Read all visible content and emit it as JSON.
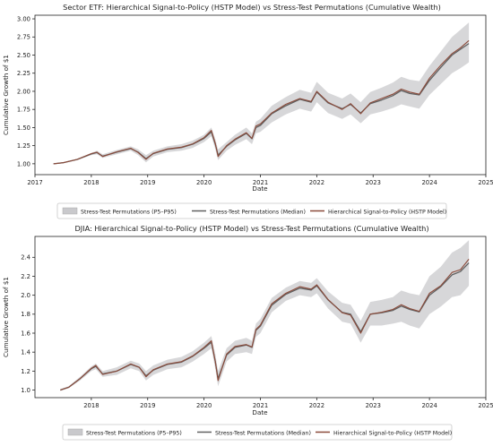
{
  "colors": {
    "band": "#c9c9cc",
    "median": "#606060",
    "hstp": "#8b4a3a",
    "axis": "#222222",
    "legend_border": "#c8c8c8"
  },
  "chart_data": [
    {
      "type": "line",
      "title": "Sector ETF: Hierarchical Signal-to-Policy (HSTP Model) vs Stress-Test Permutations (Cumulative Wealth)",
      "xlabel": "Date",
      "ylabel": "Cumulative Growth of $1",
      "x_unit": "year",
      "xlim": [
        2017.0,
        2025.0
      ],
      "ylim": [
        0.85,
        3.05
      ],
      "xticks": [
        "2017",
        "2018",
        "2019",
        "2020",
        "2021",
        "2022",
        "2023",
        "2024",
        "2025"
      ],
      "yticks": [
        "1.00",
        "1.25",
        "1.50",
        "1.75",
        "2.00",
        "2.25",
        "2.50",
        "2.75",
        "3.00"
      ],
      "legend": "bottom-center",
      "x": [
        2017.33,
        2017.5,
        2017.75,
        2018.0,
        2018.1,
        2018.2,
        2018.45,
        2018.7,
        2018.83,
        2018.97,
        2019.1,
        2019.35,
        2019.6,
        2019.8,
        2020.0,
        2020.13,
        2020.2,
        2020.25,
        2020.4,
        2020.55,
        2020.75,
        2020.85,
        2020.92,
        2021.0,
        2021.2,
        2021.45,
        2021.7,
        2021.9,
        2022.0,
        2022.2,
        2022.45,
        2022.6,
        2022.78,
        2022.95,
        2023.15,
        2023.35,
        2023.5,
        2023.65,
        2023.82,
        2024.0,
        2024.2,
        2024.4,
        2024.55,
        2024.7
      ],
      "series": [
        {
          "name": "Stress-Test Permutations (P5–P95)",
          "kind": "band",
          "lower": [
            1.0,
            1.01,
            1.05,
            1.12,
            1.13,
            1.08,
            1.13,
            1.18,
            1.12,
            1.02,
            1.1,
            1.16,
            1.18,
            1.22,
            1.3,
            1.38,
            1.2,
            1.05,
            1.18,
            1.26,
            1.34,
            1.27,
            1.42,
            1.44,
            1.57,
            1.68,
            1.76,
            1.72,
            1.85,
            1.7,
            1.62,
            1.68,
            1.56,
            1.68,
            1.72,
            1.77,
            1.82,
            1.79,
            1.76,
            1.95,
            2.1,
            2.25,
            2.32,
            2.4
          ],
          "upper": [
            1.0,
            1.02,
            1.07,
            1.15,
            1.18,
            1.13,
            1.19,
            1.24,
            1.2,
            1.12,
            1.18,
            1.24,
            1.27,
            1.32,
            1.4,
            1.5,
            1.34,
            1.2,
            1.3,
            1.4,
            1.5,
            1.42,
            1.58,
            1.62,
            1.8,
            1.92,
            2.02,
            1.98,
            2.13,
            1.98,
            1.9,
            1.97,
            1.85,
            1.99,
            2.05,
            2.12,
            2.2,
            2.16,
            2.14,
            2.35,
            2.55,
            2.75,
            2.85,
            2.95
          ]
        },
        {
          "name": "Stress-Test Permutations (Median)",
          "kind": "line",
          "values": [
            1.0,
            1.015,
            1.06,
            1.135,
            1.155,
            1.105,
            1.16,
            1.21,
            1.16,
            1.07,
            1.14,
            1.2,
            1.225,
            1.27,
            1.35,
            1.44,
            1.27,
            1.12,
            1.24,
            1.33,
            1.42,
            1.345,
            1.5,
            1.53,
            1.69,
            1.8,
            1.89,
            1.85,
            1.99,
            1.84,
            1.76,
            1.82,
            1.7,
            1.83,
            1.88,
            1.94,
            2.01,
            1.97,
            1.95,
            2.15,
            2.33,
            2.5,
            2.58,
            2.66
          ]
        },
        {
          "name": "Hierarchical Signal-to-Policy (HSTP Model)",
          "kind": "line",
          "values": [
            1.0,
            1.015,
            1.06,
            1.14,
            1.16,
            1.1,
            1.165,
            1.215,
            1.155,
            1.06,
            1.145,
            1.205,
            1.23,
            1.275,
            1.36,
            1.46,
            1.28,
            1.1,
            1.25,
            1.34,
            1.43,
            1.35,
            1.52,
            1.55,
            1.7,
            1.82,
            1.9,
            1.86,
            2.0,
            1.85,
            1.75,
            1.83,
            1.69,
            1.84,
            1.9,
            1.96,
            2.03,
            1.99,
            1.96,
            2.18,
            2.36,
            2.52,
            2.6,
            2.7
          ]
        }
      ]
    },
    {
      "type": "line",
      "title": "DJIA: Hierarchical Signal-to-Policy (HSTP Model) vs Stress-Test Permutations (Cumulative Wealth)",
      "xlabel": "Date",
      "ylabel": "Cumulative Growth of $1",
      "x_unit": "year",
      "xlim": [
        2017.0,
        2025.0
      ],
      "ylim": [
        0.92,
        2.62
      ],
      "xticks": [
        "2018",
        "2019",
        "2020",
        "2021",
        "2022",
        "2023",
        "2024",
        "2025"
      ],
      "yticks": [
        "1.0",
        "1.2",
        "1.4",
        "1.6",
        "1.8",
        "2.0",
        "2.2",
        "2.4"
      ],
      "legend": "bottom-center",
      "x": [
        2017.45,
        2017.6,
        2017.8,
        2018.0,
        2018.08,
        2018.2,
        2018.45,
        2018.7,
        2018.85,
        2018.97,
        2019.1,
        2019.35,
        2019.6,
        2019.8,
        2020.0,
        2020.13,
        2020.2,
        2020.25,
        2020.4,
        2020.55,
        2020.75,
        2020.85,
        2020.92,
        2021.0,
        2021.2,
        2021.45,
        2021.7,
        2021.9,
        2022.0,
        2022.2,
        2022.45,
        2022.6,
        2022.78,
        2022.95,
        2023.15,
        2023.35,
        2023.5,
        2023.65,
        2023.82,
        2024.0,
        2024.2,
        2024.4,
        2024.55,
        2024.7
      ],
      "series": [
        {
          "name": "Stress-Test Permutations (P5–P95)",
          "kind": "band",
          "lower": [
            0.99,
            1.02,
            1.1,
            1.2,
            1.22,
            1.14,
            1.16,
            1.23,
            1.2,
            1.1,
            1.16,
            1.22,
            1.24,
            1.3,
            1.38,
            1.44,
            1.22,
            1.04,
            1.3,
            1.38,
            1.4,
            1.38,
            1.56,
            1.6,
            1.82,
            1.94,
            2.0,
            1.98,
            2.02,
            1.86,
            1.72,
            1.7,
            1.5,
            1.68,
            1.68,
            1.7,
            1.72,
            1.68,
            1.65,
            1.8,
            1.88,
            1.98,
            2.0,
            2.1
          ],
          "upper": [
            1.01,
            1.04,
            1.14,
            1.25,
            1.28,
            1.2,
            1.24,
            1.31,
            1.28,
            1.2,
            1.26,
            1.32,
            1.35,
            1.41,
            1.5,
            1.57,
            1.38,
            1.2,
            1.44,
            1.52,
            1.55,
            1.52,
            1.7,
            1.75,
            1.97,
            2.08,
            2.15,
            2.13,
            2.18,
            2.04,
            1.92,
            1.9,
            1.73,
            1.93,
            1.95,
            1.98,
            2.05,
            2.02,
            2.0,
            2.2,
            2.3,
            2.45,
            2.5,
            2.58
          ]
        },
        {
          "name": "Stress-Test Permutations (Median)",
          "kind": "line",
          "values": [
            1.0,
            1.03,
            1.12,
            1.225,
            1.25,
            1.17,
            1.2,
            1.27,
            1.24,
            1.15,
            1.21,
            1.27,
            1.295,
            1.355,
            1.44,
            1.505,
            1.3,
            1.12,
            1.37,
            1.45,
            1.475,
            1.45,
            1.63,
            1.675,
            1.895,
            2.01,
            2.075,
            2.055,
            2.1,
            1.95,
            1.82,
            1.8,
            1.615,
            1.8,
            1.815,
            1.84,
            1.885,
            1.85,
            1.825,
            2.0,
            2.09,
            2.215,
            2.25,
            2.34
          ]
        },
        {
          "name": "Hierarchical Signal-to-Policy (HSTP Model)",
          "kind": "line",
          "values": [
            1.0,
            1.03,
            1.12,
            1.23,
            1.26,
            1.165,
            1.2,
            1.275,
            1.24,
            1.14,
            1.215,
            1.275,
            1.3,
            1.36,
            1.45,
            1.52,
            1.3,
            1.1,
            1.38,
            1.46,
            1.48,
            1.455,
            1.64,
            1.685,
            1.91,
            2.02,
            2.09,
            2.065,
            2.11,
            1.955,
            1.815,
            1.79,
            1.6,
            1.8,
            1.82,
            1.85,
            1.9,
            1.86,
            1.83,
            2.02,
            2.1,
            2.24,
            2.27,
            2.38
          ]
        }
      ]
    }
  ]
}
